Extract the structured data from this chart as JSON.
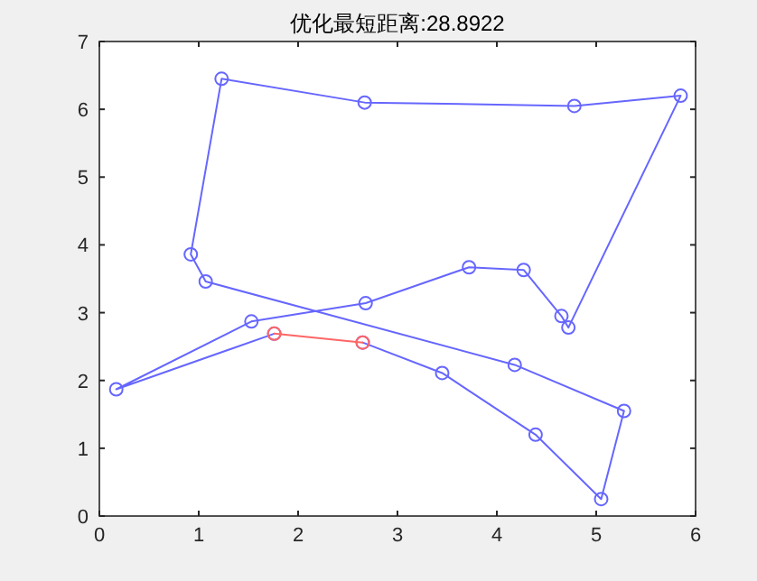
{
  "chart_data": {
    "type": "line",
    "title": "优化最短距离:28.8922",
    "xlim": [
      0,
      6
    ],
    "ylim": [
      0,
      7
    ],
    "xticks": [
      0,
      1,
      2,
      3,
      4,
      5,
      6
    ],
    "yticks": [
      0,
      1,
      2,
      3,
      4,
      5,
      6,
      7
    ],
    "marker": "circle",
    "line_style": "solid",
    "series": [
      {
        "color": "#6666ff",
        "x": [
          1.76,
          0.17,
          1.53,
          2.68,
          3.72,
          4.27,
          4.65,
          4.72,
          5.85,
          4.78,
          2.67,
          1.23,
          0.92,
          1.07,
          4.18,
          5.28,
          5.05,
          4.39,
          3.45,
          2.65
        ],
        "values": [
          2.69,
          1.87,
          2.87,
          3.14,
          3.67,
          3.63,
          2.95,
          2.78,
          6.2,
          6.05,
          6.1,
          6.45,
          3.86,
          3.46,
          2.23,
          1.55,
          0.25,
          1.2,
          2.11,
          2.56
        ]
      },
      {
        "color": "#ff6666",
        "x": [
          2.65,
          1.76
        ],
        "values": [
          2.56,
          2.69
        ]
      }
    ]
  }
}
